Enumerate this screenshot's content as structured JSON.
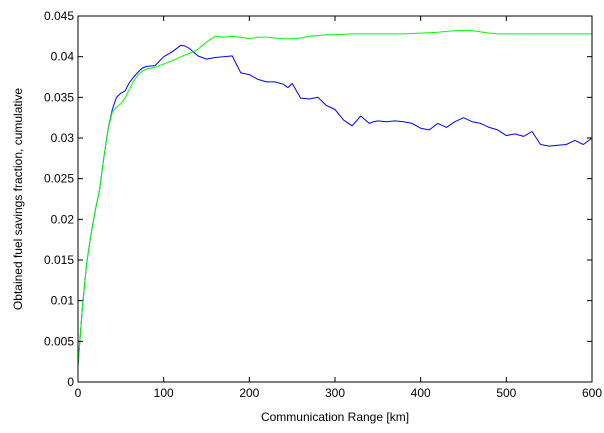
{
  "chart_data": {
    "type": "line",
    "title": "",
    "xlabel": "Communication Range [km]",
    "ylabel": "Obtained fuel savings fraction, cumulative",
    "xlim": [
      0,
      600
    ],
    "ylim": [
      0,
      0.045
    ],
    "xticks": [
      0,
      100,
      200,
      300,
      400,
      500,
      600
    ],
    "yticks": [
      0,
      0.005,
      0.01,
      0.015,
      0.02,
      0.025,
      0.03,
      0.035,
      0.04,
      0.045
    ],
    "xtick_labels": [
      "0",
      "100",
      "200",
      "300",
      "400",
      "500",
      "600"
    ],
    "ytick_labels": [
      "0",
      "0.005",
      "0.01",
      "0.015",
      "0.02",
      "0.025",
      "0.03",
      "0.035",
      "0.04",
      "0.045"
    ],
    "grid": false,
    "legend": "none",
    "series": [
      {
        "color": "#0000ff",
        "x": [
          0,
          5,
          10,
          15,
          20,
          25,
          30,
          35,
          40,
          45,
          50,
          55,
          60,
          65,
          70,
          75,
          80,
          90,
          100,
          110,
          120,
          125,
          130,
          140,
          150,
          160,
          170,
          180,
          190,
          200,
          210,
          220,
          230,
          240,
          245,
          250,
          260,
          270,
          280,
          290,
          300,
          310,
          320,
          330,
          340,
          345,
          350,
          360,
          370,
          380,
          390,
          400,
          410,
          420,
          430,
          440,
          450,
          460,
          470,
          480,
          490,
          500,
          510,
          520,
          530,
          540,
          550,
          560,
          570,
          580,
          590,
          600
        ],
        "y": [
          0.002,
          0.009,
          0.0145,
          0.018,
          0.021,
          0.0235,
          0.0275,
          0.031,
          0.0335,
          0.035,
          0.0355,
          0.0358,
          0.0368,
          0.0375,
          0.0381,
          0.0386,
          0.0388,
          0.0389,
          0.04,
          0.0406,
          0.0414,
          0.0413,
          0.041,
          0.0401,
          0.0397,
          0.0399,
          0.04,
          0.0401,
          0.038,
          0.0378,
          0.0372,
          0.0369,
          0.0369,
          0.0366,
          0.0362,
          0.0367,
          0.0349,
          0.0348,
          0.035,
          0.034,
          0.0335,
          0.0322,
          0.0315,
          0.0327,
          0.0318,
          0.032,
          0.0321,
          0.032,
          0.0321,
          0.032,
          0.0318,
          0.0312,
          0.031,
          0.0318,
          0.0313,
          0.032,
          0.0325,
          0.032,
          0.0318,
          0.0313,
          0.031,
          0.0303,
          0.0305,
          0.0302,
          0.0308,
          0.0292,
          0.029,
          0.0291,
          0.0292,
          0.0297,
          0.0292,
          0.03
        ]
      },
      {
        "color": "#00ff00",
        "x": [
          0,
          5,
          10,
          15,
          20,
          25,
          30,
          35,
          40,
          45,
          50,
          55,
          60,
          65,
          70,
          75,
          80,
          90,
          100,
          110,
          120,
          130,
          140,
          150,
          160,
          170,
          180,
          190,
          200,
          210,
          220,
          230,
          240,
          250,
          260,
          270,
          280,
          290,
          300,
          320,
          340,
          360,
          380,
          400,
          420,
          440,
          460,
          480,
          490,
          500,
          520,
          540,
          560,
          580,
          600
        ],
        "y": [
          0.002,
          0.009,
          0.0145,
          0.018,
          0.021,
          0.0235,
          0.0275,
          0.031,
          0.0332,
          0.0338,
          0.0342,
          0.0349,
          0.036,
          0.037,
          0.0378,
          0.0382,
          0.0385,
          0.0387,
          0.0391,
          0.0395,
          0.04,
          0.0404,
          0.0409,
          0.0418,
          0.0425,
          0.0424,
          0.0425,
          0.0424,
          0.0422,
          0.0424,
          0.0424,
          0.0423,
          0.0422,
          0.0422,
          0.0423,
          0.0425,
          0.0426,
          0.0427,
          0.0427,
          0.0428,
          0.0428,
          0.0428,
          0.0428,
          0.0429,
          0.043,
          0.0432,
          0.0432,
          0.0429,
          0.0428,
          0.0428,
          0.0428,
          0.0428,
          0.0428,
          0.0428,
          0.0428
        ]
      }
    ]
  }
}
